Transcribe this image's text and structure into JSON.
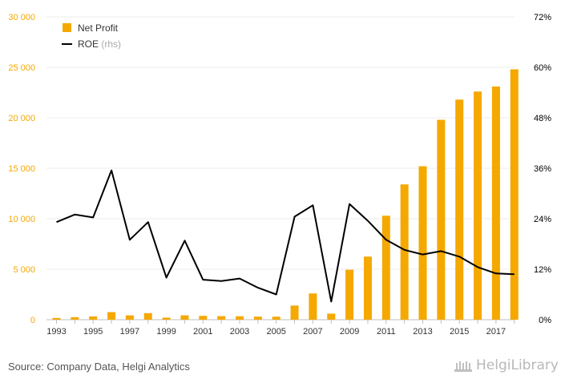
{
  "chart_data": {
    "type": "bar+line",
    "x": [
      1993,
      1994,
      1995,
      1996,
      1997,
      1998,
      1999,
      2000,
      2001,
      2002,
      2003,
      2004,
      2005,
      2006,
      2007,
      2008,
      2009,
      2010,
      2011,
      2012,
      2013,
      2014,
      2015,
      2016,
      2017,
      2018
    ],
    "x_tick_labels": [
      "1993",
      "1995",
      "1997",
      "1999",
      "2001",
      "2003",
      "2005",
      "2007",
      "2009",
      "2011",
      "2013",
      "2015",
      "2017"
    ],
    "series": [
      {
        "name": "Net Profit",
        "type": "bar",
        "axis": "left",
        "color": "#f5a800",
        "values": [
          170,
          250,
          330,
          750,
          430,
          650,
          200,
          430,
          380,
          350,
          340,
          300,
          300,
          1400,
          2600,
          600,
          4950,
          6250,
          10300,
          13400,
          15200,
          19800,
          21800,
          22600,
          23100,
          24800
        ]
      },
      {
        "name": "ROE",
        "name_suffix": "(rhs)",
        "type": "line",
        "axis": "right",
        "color": "#000000",
        "values": [
          0.232,
          0.25,
          0.243,
          0.355,
          0.19,
          0.232,
          0.1,
          0.188,
          0.095,
          0.092,
          0.098,
          0.076,
          0.06,
          0.245,
          0.272,
          0.043,
          0.275,
          0.235,
          0.19,
          0.166,
          0.155,
          0.163,
          0.15,
          0.125,
          0.11,
          0.108
        ]
      }
    ],
    "left_axis": {
      "ylim": [
        0,
        30000
      ],
      "ticks": [
        "0",
        "5 000",
        "10 000",
        "15 000",
        "20 000",
        "25 000",
        "30 000"
      ],
      "tick_values": [
        0,
        5000,
        10000,
        15000,
        20000,
        25000,
        30000
      ]
    },
    "right_axis": {
      "ylim": [
        0,
        0.72
      ],
      "ticks": [
        "0%",
        "12%",
        "24%",
        "36%",
        "48%",
        "60%",
        "72%"
      ],
      "tick_values": [
        0,
        0.12,
        0.24,
        0.36,
        0.48,
        0.6,
        0.72
      ]
    },
    "grid": true,
    "legend_position": "top-left",
    "colors": {
      "axis_label_left": "#f5a800",
      "axis_label_right": "#000000",
      "grid": "#ececec"
    }
  },
  "footer": {
    "source": "Source: Company Data, Helgi Analytics",
    "brand": "HelgiLibrary"
  }
}
